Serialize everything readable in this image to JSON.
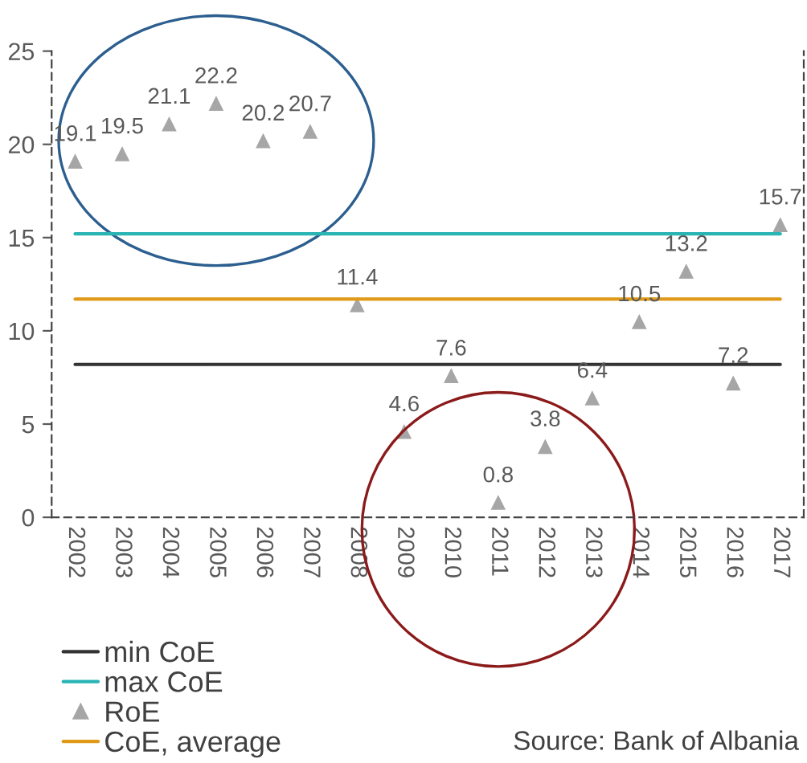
{
  "chart_data": {
    "type": "line",
    "categories": [
      "2002",
      "2003",
      "2004",
      "2005",
      "2006",
      "2007",
      "2008",
      "2009",
      "2010",
      "2011",
      "2012",
      "2013",
      "2014",
      "2015",
      "2016",
      "2017"
    ],
    "series": [
      {
        "name": "min CoE",
        "color": "#333333",
        "values": [
          8.2,
          8.2,
          8.2,
          8.2,
          8.2,
          8.2,
          8.2,
          8.2,
          8.2,
          8.2,
          8.2,
          8.2,
          8.2,
          8.2,
          8.2,
          8.2
        ]
      },
      {
        "name": "max CoE",
        "color": "#2ab5b5",
        "values": [
          15.2,
          15.2,
          15.2,
          15.2,
          15.2,
          15.2,
          15.2,
          15.2,
          15.2,
          15.2,
          15.2,
          15.2,
          15.2,
          15.2,
          15.2,
          15.2
        ]
      },
      {
        "name": "RoE",
        "type": "scatter",
        "marker": "triangle",
        "data_labels": true,
        "color": "#a6a6a6",
        "values": [
          19.1,
          19.5,
          21.1,
          22.2,
          20.2,
          20.7,
          11.4,
          4.6,
          7.6,
          0.8,
          3.8,
          6.4,
          10.5,
          13.2,
          7.2,
          15.7
        ]
      },
      {
        "name": "CoE, average",
        "color": "#e09a1a",
        "values": [
          11.7,
          11.7,
          11.7,
          11.7,
          11.7,
          11.7,
          11.7,
          11.7,
          11.7,
          11.7,
          11.7,
          11.7,
          11.7,
          11.7,
          11.7,
          11.7
        ]
      }
    ],
    "ylim": [
      0,
      25
    ],
    "yticks": [
      0,
      5,
      10,
      15,
      20,
      25
    ],
    "legend": "bottom left",
    "annotations": [
      "Source: Bank of Albania"
    ]
  }
}
